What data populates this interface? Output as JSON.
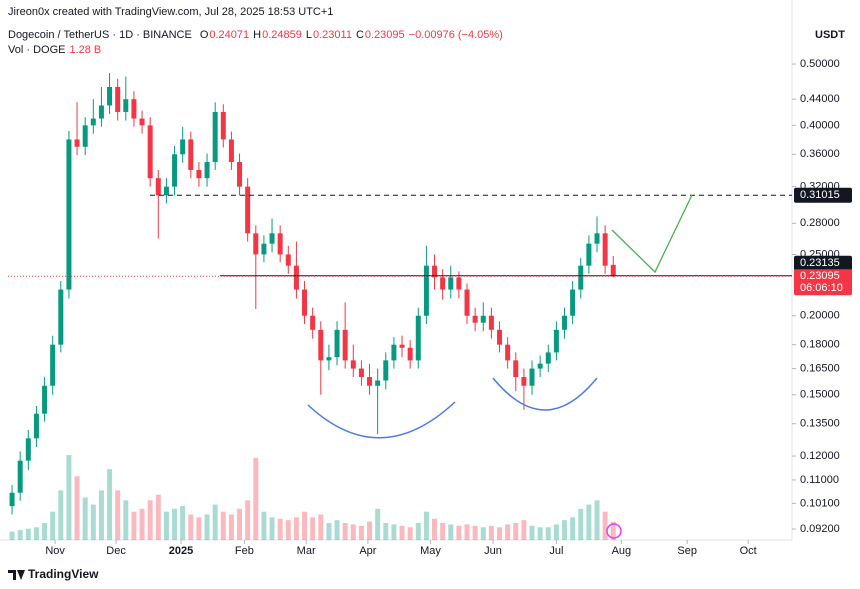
{
  "chart_data": {
    "type": "candlestick",
    "watermark": "Jireon0x created with TradingView.com, Jul 28, 2025 18:53 UTC+1",
    "title": "Dogecoin / TetherUS · 1D · BINANCE",
    "ohlc_legend": [
      {
        "label": "O",
        "value": "0.24071"
      },
      {
        "label": "H",
        "value": "0.24859"
      },
      {
        "label": "L",
        "value": "0.23011"
      },
      {
        "label": "C",
        "value": "0.23095"
      }
    ],
    "change": "−0.00976 (−4.05%)",
    "volume_legend": {
      "name": "Vol · DOGE",
      "value": "1.28 B"
    },
    "currency": "USDT",
    "countdown": "06:06:10",
    "brand": "TradingView",
    "log_scale": true,
    "up_color": "#089981",
    "down_color": "#f23645",
    "open": [
      0.1,
      0.105,
      0.118,
      0.128,
      0.14,
      0.155,
      0.18,
      0.22,
      0.38,
      0.37,
      0.4,
      0.41,
      0.43,
      0.46,
      0.42,
      0.44,
      0.41,
      0.4,
      0.33,
      0.31,
      0.32,
      0.36,
      0.38,
      0.34,
      0.33,
      0.35,
      0.42,
      0.38,
      0.35,
      0.32,
      0.27,
      0.25,
      0.26,
      0.27,
      0.25,
      0.24,
      0.22,
      0.2,
      0.19,
      0.17,
      0.172,
      0.19,
      0.17,
      0.165,
      0.16,
      0.155,
      0.158,
      0.17,
      0.18,
      0.178,
      0.17,
      0.2,
      0.24,
      0.23,
      0.22,
      0.23,
      0.22,
      0.2,
      0.195,
      0.2,
      0.19,
      0.18,
      0.17,
      0.16,
      0.155,
      0.165,
      0.168,
      0.175,
      0.19,
      0.2,
      0.22,
      0.24,
      0.26,
      0.27,
      0.24071
    ],
    "high": [
      0.108,
      0.122,
      0.132,
      0.144,
      0.16,
      0.186,
      0.227,
      0.392,
      0.435,
      0.412,
      0.44,
      0.46,
      0.484,
      0.474,
      0.478,
      0.453,
      0.422,
      0.412,
      0.34,
      0.33,
      0.371,
      0.398,
      0.391,
      0.35,
      0.361,
      0.435,
      0.432,
      0.391,
      0.361,
      0.33,
      0.278,
      0.268,
      0.285,
      0.278,
      0.258,
      0.262,
      0.227,
      0.206,
      0.196,
      0.18,
      0.196,
      0.21,
      0.18,
      0.17,
      0.168,
      0.165,
      0.175,
      0.185,
      0.186,
      0.183,
      0.206,
      0.258,
      0.25,
      0.237,
      0.24,
      0.235,
      0.225,
      0.206,
      0.21,
      0.206,
      0.196,
      0.185,
      0.175,
      0.165,
      0.17,
      0.173,
      0.18,
      0.196,
      0.206,
      0.227,
      0.247,
      0.268,
      0.287,
      0.278,
      0.24859
    ],
    "low": [
      0.097,
      0.102,
      0.114,
      0.124,
      0.136,
      0.15,
      0.175,
      0.213,
      0.359,
      0.359,
      0.388,
      0.398,
      0.417,
      0.407,
      0.407,
      0.398,
      0.388,
      0.32,
      0.265,
      0.301,
      0.31,
      0.349,
      0.33,
      0.32,
      0.32,
      0.34,
      0.369,
      0.34,
      0.31,
      0.262,
      0.205,
      0.243,
      0.252,
      0.243,
      0.233,
      0.213,
      0.194,
      0.184,
      0.15,
      0.164,
      0.167,
      0.165,
      0.16,
      0.155,
      0.15,
      0.13,
      0.153,
      0.165,
      0.172,
      0.165,
      0.165,
      0.194,
      0.22,
      0.212,
      0.213,
      0.213,
      0.194,
      0.189,
      0.189,
      0.184,
      0.175,
      0.165,
      0.152,
      0.142,
      0.15,
      0.16,
      0.163,
      0.17,
      0.184,
      0.194,
      0.213,
      0.233,
      0.252,
      0.233,
      0.23011
    ],
    "close": [
      0.105,
      0.118,
      0.128,
      0.14,
      0.155,
      0.18,
      0.22,
      0.38,
      0.37,
      0.4,
      0.41,
      0.43,
      0.46,
      0.42,
      0.44,
      0.41,
      0.4,
      0.33,
      0.31,
      0.32,
      0.36,
      0.38,
      0.34,
      0.33,
      0.35,
      0.42,
      0.38,
      0.35,
      0.32,
      0.27,
      0.25,
      0.26,
      0.27,
      0.25,
      0.24,
      0.22,
      0.2,
      0.19,
      0.17,
      0.172,
      0.19,
      0.17,
      0.165,
      0.16,
      0.155,
      0.158,
      0.17,
      0.18,
      0.178,
      0.17,
      0.2,
      0.24,
      0.23,
      0.22,
      0.23,
      0.22,
      0.2,
      0.195,
      0.2,
      0.19,
      0.18,
      0.17,
      0.16,
      0.155,
      0.165,
      0.168,
      0.175,
      0.19,
      0.2,
      0.22,
      0.24,
      0.26,
      0.27,
      0.24,
      0.23095
    ],
    "volume": [
      0.6,
      0.7,
      0.8,
      0.9,
      1.2,
      2.0,
      3.5,
      6.0,
      4.5,
      3.0,
      2.5,
      3.5,
      5.0,
      3.5,
      2.8,
      2.0,
      2.2,
      2.8,
      3.2,
      2.0,
      2.2,
      2.4,
      1.8,
      1.6,
      1.8,
      2.5,
      2.0,
      1.8,
      2.2,
      2.8,
      5.8,
      2.0,
      1.6,
      1.5,
      1.4,
      1.6,
      2.0,
      1.6,
      1.8,
      1.2,
      1.4,
      1.2,
      1.1,
      1.0,
      1.3,
      2.2,
      1.2,
      1.1,
      1.0,
      0.9,
      1.2,
      2.0,
      1.5,
      1.2,
      1.1,
      1.0,
      1.1,
      1.0,
      0.9,
      1.0,
      0.9,
      1.1,
      1.2,
      1.4,
      1.0,
      0.9,
      0.9,
      1.1,
      1.4,
      1.6,
      2.2,
      2.5,
      2.8,
      2.0,
      1.28
    ],
    "ylim": [
      0.0884,
      0.566
    ],
    "yticks": [
      {
        "value": 0.5,
        "label": "0.50000"
      },
      {
        "value": 0.44,
        "label": "0.44000"
      },
      {
        "value": 0.4,
        "label": "0.40000"
      },
      {
        "value": 0.36,
        "label": "0.36000"
      },
      {
        "value": 0.32,
        "label": "0.32000"
      },
      {
        "value": 0.28,
        "label": "0.28000"
      },
      {
        "value": 0.25,
        "label": "0.25000"
      },
      {
        "value": 0.2,
        "label": "0.20000"
      },
      {
        "value": 0.18,
        "label": "0.18000"
      },
      {
        "value": 0.165,
        "label": "0.16500"
      },
      {
        "value": 0.15,
        "label": "0.15000"
      },
      {
        "value": 0.135,
        "label": "0.13500"
      },
      {
        "value": 0.12,
        "label": "0.12000"
      },
      {
        "value": 0.11,
        "label": "0.11000"
      },
      {
        "value": 0.101,
        "label": "0.10100"
      },
      {
        "value": 0.092,
        "label": "0.09200"
      }
    ],
    "xlim": [
      0,
      96.5
    ],
    "xticks": [
      {
        "value": 5.8,
        "label": "Nov"
      },
      {
        "value": 13.3,
        "label": "Dec"
      },
      {
        "value": 21.3,
        "label": "2025"
      },
      {
        "value": 29.1,
        "label": "Feb"
      },
      {
        "value": 36.7,
        "label": "Mar"
      },
      {
        "value": 44.3,
        "label": "Apr"
      },
      {
        "value": 52.0,
        "label": "May"
      },
      {
        "value": 59.7,
        "label": "Jun"
      },
      {
        "value": 67.5,
        "label": "Jul"
      },
      {
        "value": 75.5,
        "label": "Aug"
      },
      {
        "value": 83.6,
        "label": "Sep"
      },
      {
        "value": 91.1,
        "label": "Oct"
      }
    ],
    "levels": {
      "target": 0.31015,
      "neckline": 0.23135,
      "last_price": 0.23095
    }
  }
}
